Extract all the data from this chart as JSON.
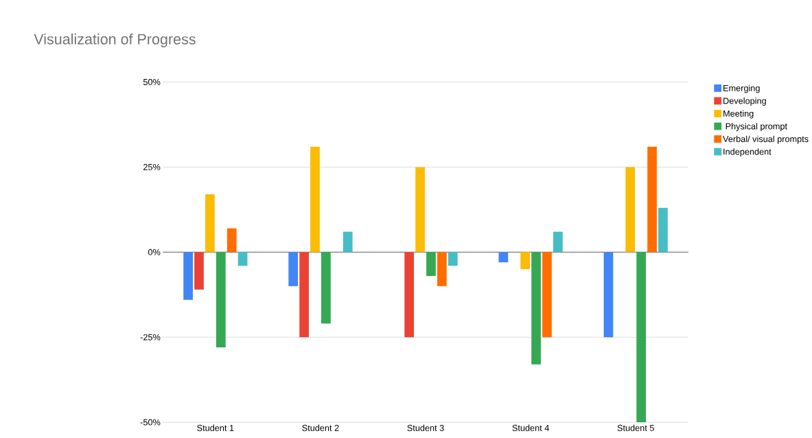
{
  "chart_data": {
    "type": "bar",
    "title": "Visualization of Progress",
    "categories": [
      "Student 1",
      "Student 2",
      "Student 3",
      "Student 4",
      "Student 5"
    ],
    "series": [
      {
        "name": "Emerging",
        "color": "#4285f4",
        "values": [
          -14,
          -10,
          0,
          -3,
          -25
        ]
      },
      {
        "name": "Developing",
        "color": "#ea4335",
        "values": [
          -11,
          -25,
          -25,
          0,
          0
        ]
      },
      {
        "name": "Meeting",
        "color": "#fbbc04",
        "values": [
          17,
          31,
          25,
          -5,
          25
        ]
      },
      {
        "name": " Physical prompt",
        "color": "#34a853",
        "values": [
          -28,
          -21,
          -7,
          -33,
          -50
        ]
      },
      {
        "name": "Verbal/ visual prompts",
        "color": "#ff6d01",
        "values": [
          7,
          0,
          -10,
          -25,
          31
        ]
      },
      {
        "name": "Independent",
        "color": "#46bdc6",
        "values": [
          -4,
          6,
          -4,
          6,
          13
        ]
      }
    ],
    "ylim": [
      -50,
      50
    ],
    "yticks": [
      {
        "value": -50,
        "label": "-50%"
      },
      {
        "value": -25,
        "label": "-25%"
      },
      {
        "value": 0,
        "label": "0%"
      },
      {
        "value": 25,
        "label": "25%"
      },
      {
        "value": 50,
        "label": "50%"
      }
    ],
    "grid": "y",
    "legend": "right"
  }
}
